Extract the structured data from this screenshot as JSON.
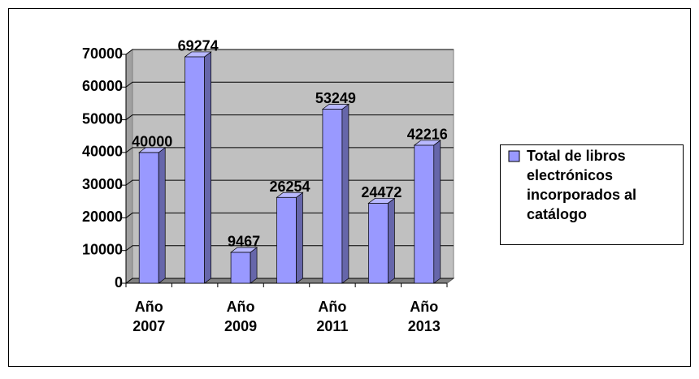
{
  "chart_data": {
    "type": "bar",
    "categories": [
      "Año 2007",
      null,
      "Año 2009",
      null,
      "Año 2011",
      null,
      "Año 2013"
    ],
    "series": [
      {
        "name": "Total de libros electrónicos incorporados al catálogo",
        "color": "#9999ff",
        "values": [
          40000,
          69274,
          9467,
          26254,
          53249,
          24472,
          42216
        ]
      }
    ],
    "ylim": [
      0,
      70000
    ],
    "yticks": [
      0,
      10000,
      20000,
      30000,
      40000,
      50000,
      60000,
      70000
    ],
    "grid": true,
    "legend": "right"
  }
}
